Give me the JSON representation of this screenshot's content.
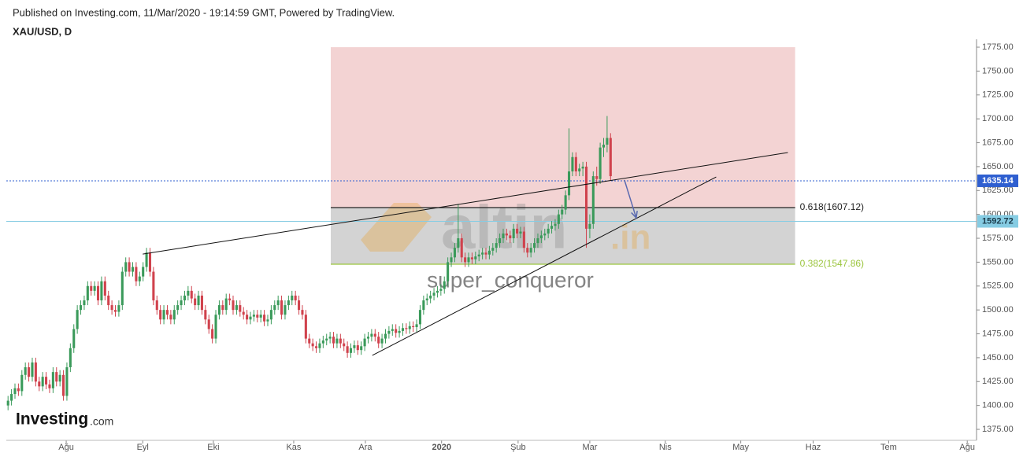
{
  "header": {
    "published": "Published on Investing.com, 11/Mar/2020 - 19:14:59 GMT, Powered by TradingView.",
    "symbol": "XAU/USD, D"
  },
  "watermarks": {
    "brand": "Investing",
    "brand_suffix": ".com",
    "site": "altin",
    "site_suffix": ".in",
    "author": "super_conqueror"
  },
  "chart_data": {
    "type": "candlestick",
    "up_color": "#3a9a5a",
    "down_color": "#d0424d",
    "open": [
      1400,
      1405,
      1412,
      1418,
      1415,
      1432,
      1440,
      1430,
      1445,
      1425,
      1420,
      1430,
      1422,
      1418,
      1435,
      1425,
      1432,
      1410,
      1440,
      1460,
      1480,
      1500,
      1505,
      1510,
      1525,
      1520,
      1525,
      1510,
      1530,
      1515,
      1505,
      1500,
      1498,
      1505,
      1540,
      1550,
      1540,
      1545,
      1530,
      1535,
      1545,
      1560,
      1540,
      1510,
      1500,
      1490,
      1500,
      1495,
      1490,
      1500,
      1505,
      1510,
      1515,
      1520,
      1512,
      1505,
      1515,
      1500,
      1490,
      1480,
      1470,
      1495,
      1505,
      1500,
      1512,
      1510,
      1500,
      1505,
      1498,
      1495,
      1490,
      1493,
      1495,
      1492,
      1495,
      1488,
      1490,
      1500,
      1505,
      1510,
      1495,
      1505,
      1510,
      1515,
      1510,
      1500,
      1495,
      1470,
      1465,
      1462,
      1460,
      1465,
      1468,
      1470,
      1472,
      1465,
      1470,
      1465,
      1462,
      1455,
      1460,
      1463,
      1458,
      1462,
      1470,
      1472,
      1475,
      1472,
      1465,
      1470,
      1475,
      1478,
      1480,
      1476,
      1478,
      1481,
      1480,
      1483,
      1482,
      1485,
      1500,
      1510,
      1512,
      1515,
      1518,
      1520,
      1522,
      1530,
      1550,
      1555,
      1565,
      1575,
      1555,
      1550,
      1555,
      1553,
      1556,
      1558,
      1560,
      1558,
      1562,
      1565,
      1570,
      1575,
      1580,
      1578,
      1575,
      1585,
      1580,
      1582,
      1565,
      1560,
      1565,
      1570,
      1575,
      1578,
      1580,
      1585,
      1588,
      1590,
      1600,
      1605,
      1620,
      1645,
      1660,
      1645,
      1648,
      1650,
      1585,
      1590,
      1640,
      1637,
      1670,
      1673,
      1680
    ],
    "high": [
      1410,
      1417,
      1423,
      1423,
      1437,
      1445,
      1445,
      1450,
      1450,
      1430,
      1435,
      1435,
      1427,
      1440,
      1440,
      1437,
      1437,
      1445,
      1465,
      1485,
      1505,
      1510,
      1515,
      1530,
      1530,
      1530,
      1530,
      1535,
      1535,
      1520,
      1510,
      1505,
      1510,
      1545,
      1555,
      1555,
      1550,
      1550,
      1540,
      1550,
      1565,
      1565,
      1545,
      1515,
      1505,
      1505,
      1505,
      1500,
      1505,
      1510,
      1515,
      1520,
      1525,
      1525,
      1517,
      1520,
      1520,
      1505,
      1495,
      1485,
      1500,
      1510,
      1510,
      1517,
      1517,
      1515,
      1510,
      1510,
      1503,
      1500,
      1498,
      1500,
      1500,
      1500,
      1500,
      1495,
      1505,
      1510,
      1515,
      1515,
      1510,
      1515,
      1520,
      1520,
      1515,
      1505,
      1500,
      1475,
      1470,
      1467,
      1470,
      1473,
      1475,
      1477,
      1477,
      1475,
      1475,
      1470,
      1467,
      1465,
      1468,
      1468,
      1467,
      1475,
      1477,
      1480,
      1480,
      1477,
      1475,
      1480,
      1483,
      1485,
      1485,
      1483,
      1486,
      1486,
      1488,
      1488,
      1490,
      1505,
      1515,
      1517,
      1520,
      1523,
      1525,
      1527,
      1535,
      1555,
      1560,
      1570,
      1611,
      1580,
      1560,
      1560,
      1560,
      1561,
      1563,
      1565,
      1565,
      1567,
      1570,
      1575,
      1580,
      1585,
      1585,
      1583,
      1590,
      1590,
      1587,
      1587,
      1570,
      1570,
      1575,
      1580,
      1583,
      1585,
      1590,
      1593,
      1595,
      1605,
      1610,
      1625,
      1690,
      1665,
      1665,
      1653,
      1655,
      1655,
      1600,
      1645,
      1650,
      1675,
      1680,
      1703,
      1685
    ],
    "low": [
      1395,
      1400,
      1407,
      1410,
      1410,
      1427,
      1425,
      1425,
      1420,
      1415,
      1415,
      1417,
      1413,
      1413,
      1420,
      1420,
      1405,
      1405,
      1435,
      1455,
      1475,
      1495,
      1500,
      1505,
      1515,
      1515,
      1505,
      1505,
      1510,
      1500,
      1495,
      1493,
      1493,
      1500,
      1535,
      1535,
      1535,
      1525,
      1525,
      1530,
      1540,
      1535,
      1505,
      1495,
      1485,
      1485,
      1490,
      1485,
      1485,
      1495,
      1500,
      1505,
      1510,
      1507,
      1500,
      1500,
      1495,
      1485,
      1475,
      1465,
      1465,
      1490,
      1495,
      1495,
      1505,
      1495,
      1495,
      1493,
      1490,
      1485,
      1485,
      1488,
      1487,
      1487,
      1483,
      1483,
      1485,
      1495,
      1500,
      1490,
      1490,
      1500,
      1505,
      1505,
      1495,
      1490,
      1465,
      1460,
      1457,
      1455,
      1455,
      1460,
      1463,
      1465,
      1460,
      1460,
      1460,
      1457,
      1450,
      1450,
      1455,
      1453,
      1453,
      1457,
      1465,
      1467,
      1467,
      1460,
      1460,
      1465,
      1470,
      1473,
      1471,
      1471,
      1473,
      1475,
      1475,
      1477,
      1477,
      1480,
      1495,
      1505,
      1507,
      1510,
      1513,
      1515,
      1517,
      1525,
      1545,
      1550,
      1560,
      1550,
      1545,
      1545,
      1548,
      1548,
      1551,
      1553,
      1553,
      1553,
      1557,
      1560,
      1565,
      1570,
      1573,
      1570,
      1570,
      1575,
      1575,
      1560,
      1555,
      1555,
      1560,
      1565,
      1570,
      1573,
      1575,
      1580,
      1583,
      1585,
      1595,
      1600,
      1615,
      1640,
      1640,
      1640,
      1640,
      1565,
      1575,
      1585,
      1630,
      1632,
      1660,
      1665,
      1635
    ],
    "close": [
      1405,
      1412,
      1418,
      1415,
      1432,
      1440,
      1430,
      1445,
      1425,
      1420,
      1430,
      1422,
      1418,
      1435,
      1425,
      1432,
      1410,
      1440,
      1460,
      1480,
      1500,
      1505,
      1510,
      1525,
      1520,
      1525,
      1510,
      1530,
      1515,
      1505,
      1500,
      1498,
      1505,
      1540,
      1550,
      1540,
      1545,
      1530,
      1535,
      1545,
      1560,
      1540,
      1510,
      1500,
      1490,
      1500,
      1495,
      1490,
      1500,
      1505,
      1510,
      1515,
      1520,
      1512,
      1505,
      1515,
      1500,
      1490,
      1480,
      1470,
      1495,
      1505,
      1500,
      1512,
      1510,
      1500,
      1505,
      1498,
      1495,
      1490,
      1493,
      1495,
      1492,
      1495,
      1488,
      1490,
      1500,
      1505,
      1510,
      1495,
      1505,
      1510,
      1515,
      1510,
      1500,
      1495,
      1470,
      1465,
      1462,
      1460,
      1465,
      1468,
      1470,
      1472,
      1465,
      1470,
      1465,
      1462,
      1455,
      1460,
      1463,
      1458,
      1462,
      1470,
      1472,
      1475,
      1472,
      1465,
      1470,
      1475,
      1478,
      1480,
      1476,
      1478,
      1481,
      1480,
      1483,
      1482,
      1485,
      1500,
      1510,
      1512,
      1515,
      1518,
      1520,
      1522,
      1530,
      1550,
      1555,
      1565,
      1575,
      1555,
      1550,
      1555,
      1553,
      1556,
      1558,
      1560,
      1558,
      1562,
      1565,
      1570,
      1575,
      1580,
      1578,
      1575,
      1585,
      1580,
      1582,
      1565,
      1560,
      1565,
      1570,
      1575,
      1578,
      1580,
      1585,
      1588,
      1590,
      1600,
      1605,
      1620,
      1645,
      1660,
      1645,
      1648,
      1650,
      1585,
      1590,
      1640,
      1637,
      1670,
      1673,
      1680,
      1640
    ],
    "xlim": [
      -0.5,
      279
    ],
    "ylim": [
      1363.5,
      1781.6
    ],
    "xticks": [
      {
        "value": 16.8,
        "label": "Ağu"
      },
      {
        "value": 38.9,
        "label": "Eyl"
      },
      {
        "value": 59.3,
        "label": "Eki"
      },
      {
        "value": 82.5,
        "label": "Kas"
      },
      {
        "value": 103.2,
        "label": "Ara"
      },
      {
        "value": 125.2,
        "label": "2020"
      },
      {
        "value": 147.3,
        "label": "Şub"
      },
      {
        "value": 168,
        "label": "Mar"
      },
      {
        "value": 189.8,
        "label": "Nis"
      },
      {
        "value": 211.6,
        "label": "May"
      },
      {
        "value": 232.5,
        "label": "Haz"
      },
      {
        "value": 254.3,
        "label": "Tem"
      },
      {
        "value": 277,
        "label": "Ağu"
      }
    ],
    "yticks": [
      {
        "value": 1375,
        "label": "1375.00"
      },
      {
        "value": 1400,
        "label": "1400.00"
      },
      {
        "value": 1425,
        "label": "1425.00"
      },
      {
        "value": 1450,
        "label": "1450.00"
      },
      {
        "value": 1475,
        "label": "1475.00"
      },
      {
        "value": 1500,
        "label": "1500.00"
      },
      {
        "value": 1525,
        "label": "1525.00"
      },
      {
        "value": 1550,
        "label": "1550.00"
      },
      {
        "value": 1575,
        "label": "1575.00"
      },
      {
        "value": 1600,
        "label": "1600.00"
      },
      {
        "value": 1625,
        "label": "1625.00"
      },
      {
        "value": 1650,
        "label": "1650.00"
      },
      {
        "value": 1675,
        "label": "1675.00"
      },
      {
        "value": 1700,
        "label": "1700.00"
      },
      {
        "value": 1725,
        "label": "1725.00"
      },
      {
        "value": 1750,
        "label": "1750.00"
      },
      {
        "value": 1775,
        "label": "1775.00"
      }
    ],
    "levels": [
      {
        "value": 1635.14,
        "color": "#2f5fd0",
        "text_color": "#ffffff",
        "dash": true
      },
      {
        "value": 1592.72,
        "color": "#86cce3",
        "text_color": "#1a3a4a",
        "dash": false
      }
    ],
    "fib_x": [
      93.2,
      227.3
    ],
    "fib_top": 1775,
    "fib": [
      {
        "value": 1607.12,
        "label": "0.618(1607.12)",
        "color": "#222222",
        "zone": "#f3d3d3"
      },
      {
        "value": 1547.86,
        "label": "0.382(1547.86)",
        "color": "#9bc53d",
        "zone": "#d3d3d3"
      }
    ],
    "trendlines": [
      [
        [
          38.9,
          1558.5
        ],
        [
          225.2,
          1664.7
        ]
      ],
      [
        [
          105.2,
          1452.4
        ],
        [
          204.5,
          1639.2
        ]
      ]
    ],
    "arrow": [
      [
        178,
        1636
      ],
      [
        181.4,
        1596.4
      ]
    ]
  }
}
